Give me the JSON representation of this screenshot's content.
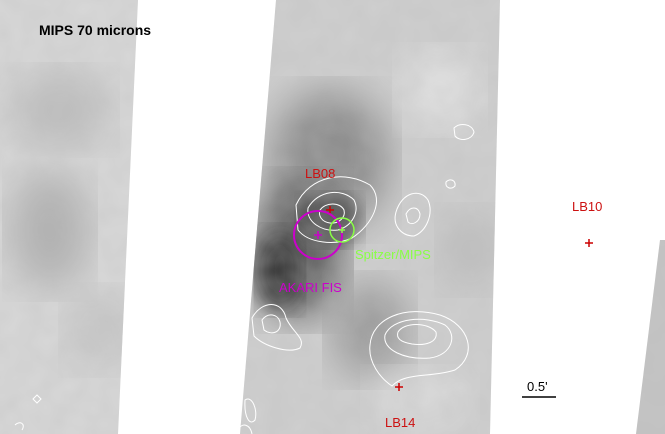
{
  "figure": {
    "title": "MIPS 70 microns",
    "colors": {
      "background": "#ffffff",
      "map_light": "#dedede",
      "map_mid": "#aeaeae",
      "map_dark": "#3a3a3a",
      "contour": "#ffffff",
      "source_marker": "#cc0000",
      "source_label": "#cc1111",
      "akari_beam": "#cc00cc",
      "spitzer_beam": "#88ff44"
    },
    "sources": [
      "LB08",
      "LB10",
      "LB14"
    ],
    "beams": {
      "akari": "AKARI FIS",
      "spitzer": "Spitzer/MIPS"
    },
    "scale_bar": "0.5'"
  }
}
